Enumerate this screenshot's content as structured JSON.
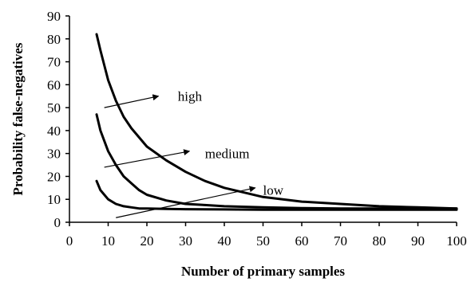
{
  "chart_data": {
    "type": "line",
    "xlabel": "Number of primary samples",
    "ylabel": "Probability false-negatives",
    "xlim": [
      0,
      100
    ],
    "ylim": [
      0,
      90
    ],
    "xticks": [
      0,
      10,
      20,
      30,
      40,
      50,
      60,
      70,
      80,
      90,
      100
    ],
    "yticks": [
      0,
      10,
      20,
      30,
      40,
      50,
      60,
      70,
      80,
      90
    ],
    "grid": false,
    "line_color": "#000000",
    "series": [
      {
        "name": "high",
        "x": [
          7,
          8,
          10,
          12,
          14,
          16,
          18,
          20,
          25,
          30,
          35,
          40,
          45,
          50,
          60,
          70,
          80,
          90,
          100
        ],
        "y": [
          82,
          75,
          62,
          53,
          46,
          41,
          37,
          33,
          27,
          22,
          18,
          15,
          13,
          11,
          9,
          8,
          7,
          6.5,
          6
        ]
      },
      {
        "name": "medium",
        "x": [
          7,
          8,
          10,
          12,
          14,
          16,
          18,
          20,
          25,
          30,
          35,
          40,
          50,
          60,
          70,
          80,
          90,
          100
        ],
        "y": [
          47,
          40,
          31,
          25,
          20,
          17,
          14,
          12,
          9.5,
          8,
          7.5,
          7,
          6.5,
          6.2,
          6,
          6,
          6,
          6
        ]
      },
      {
        "name": "low",
        "x": [
          7,
          8,
          10,
          12,
          14,
          16,
          18,
          20,
          25,
          30,
          40,
          50,
          60,
          70,
          80,
          90,
          100
        ],
        "y": [
          18,
          14,
          10,
          8,
          7,
          6.5,
          6,
          6,
          5.8,
          5.7,
          5.6,
          5.5,
          5.5,
          5.5,
          5.5,
          5.5,
          5.5
        ]
      }
    ],
    "annotations": [
      {
        "text": "high",
        "series": "high",
        "arrow_from": [
          9,
          50
        ],
        "arrow_to": [
          23,
          55
        ],
        "text_at": [
          28,
          55
        ]
      },
      {
        "text": "medium",
        "series": "medium",
        "arrow_from": [
          9,
          24
        ],
        "arrow_to": [
          31,
          31
        ],
        "text_at": [
          35,
          30
        ]
      },
      {
        "text": "low",
        "series": "low",
        "arrow_from": [
          12,
          2
        ],
        "arrow_to": [
          48,
          15
        ],
        "text_at": [
          50,
          14
        ]
      }
    ]
  }
}
